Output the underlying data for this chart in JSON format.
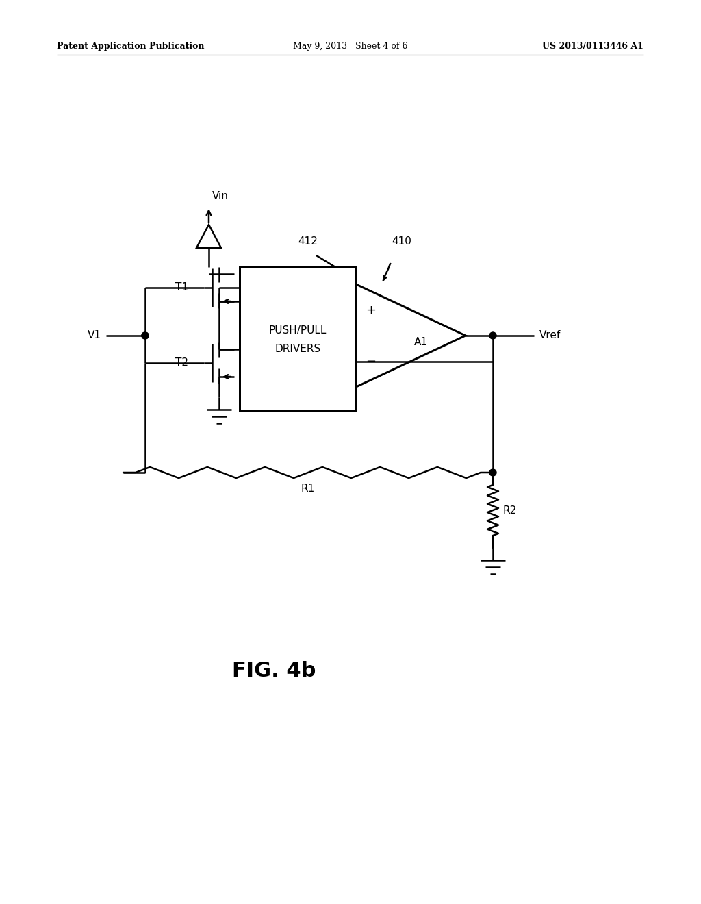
{
  "bg_color": "#ffffff",
  "line_color": "#000000",
  "lw": 1.8,
  "header_left": "Patent Application Publication",
  "header_mid": "May 9, 2013   Sheet 4 of 6",
  "header_right": "US 2013/0113446 A1",
  "fig_label": "FIG. 4b",
  "figsize": [
    10.24,
    13.2
  ],
  "dpi": 100,
  "xlim": [
    0,
    1024
  ],
  "ylim": [
    0,
    1320
  ]
}
